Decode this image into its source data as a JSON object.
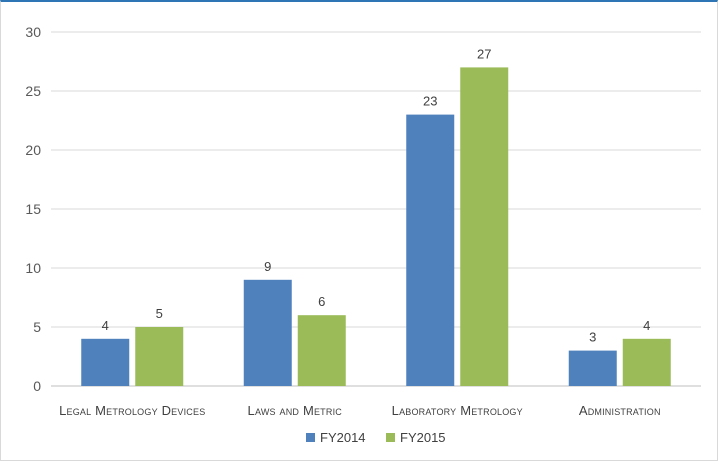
{
  "chart_data": {
    "type": "bar",
    "title": "",
    "xlabel": "",
    "ylabel": "",
    "categories": [
      "Legal Metrology Devices",
      "Laws and Metric",
      "Laboratory Metrology",
      "Administration"
    ],
    "series": [
      {
        "name": "FY2014",
        "color": "#4f81bd",
        "values": [
          4,
          9,
          23,
          3
        ]
      },
      {
        "name": "FY2015",
        "color": "#9bbb59",
        "values": [
          5,
          6,
          27,
          4
        ]
      }
    ],
    "ylim": [
      0,
      30
    ],
    "yticks": [
      0,
      5,
      10,
      15,
      20,
      25,
      30
    ],
    "grid": true,
    "data_labels": true,
    "legend_position": "bottom"
  }
}
